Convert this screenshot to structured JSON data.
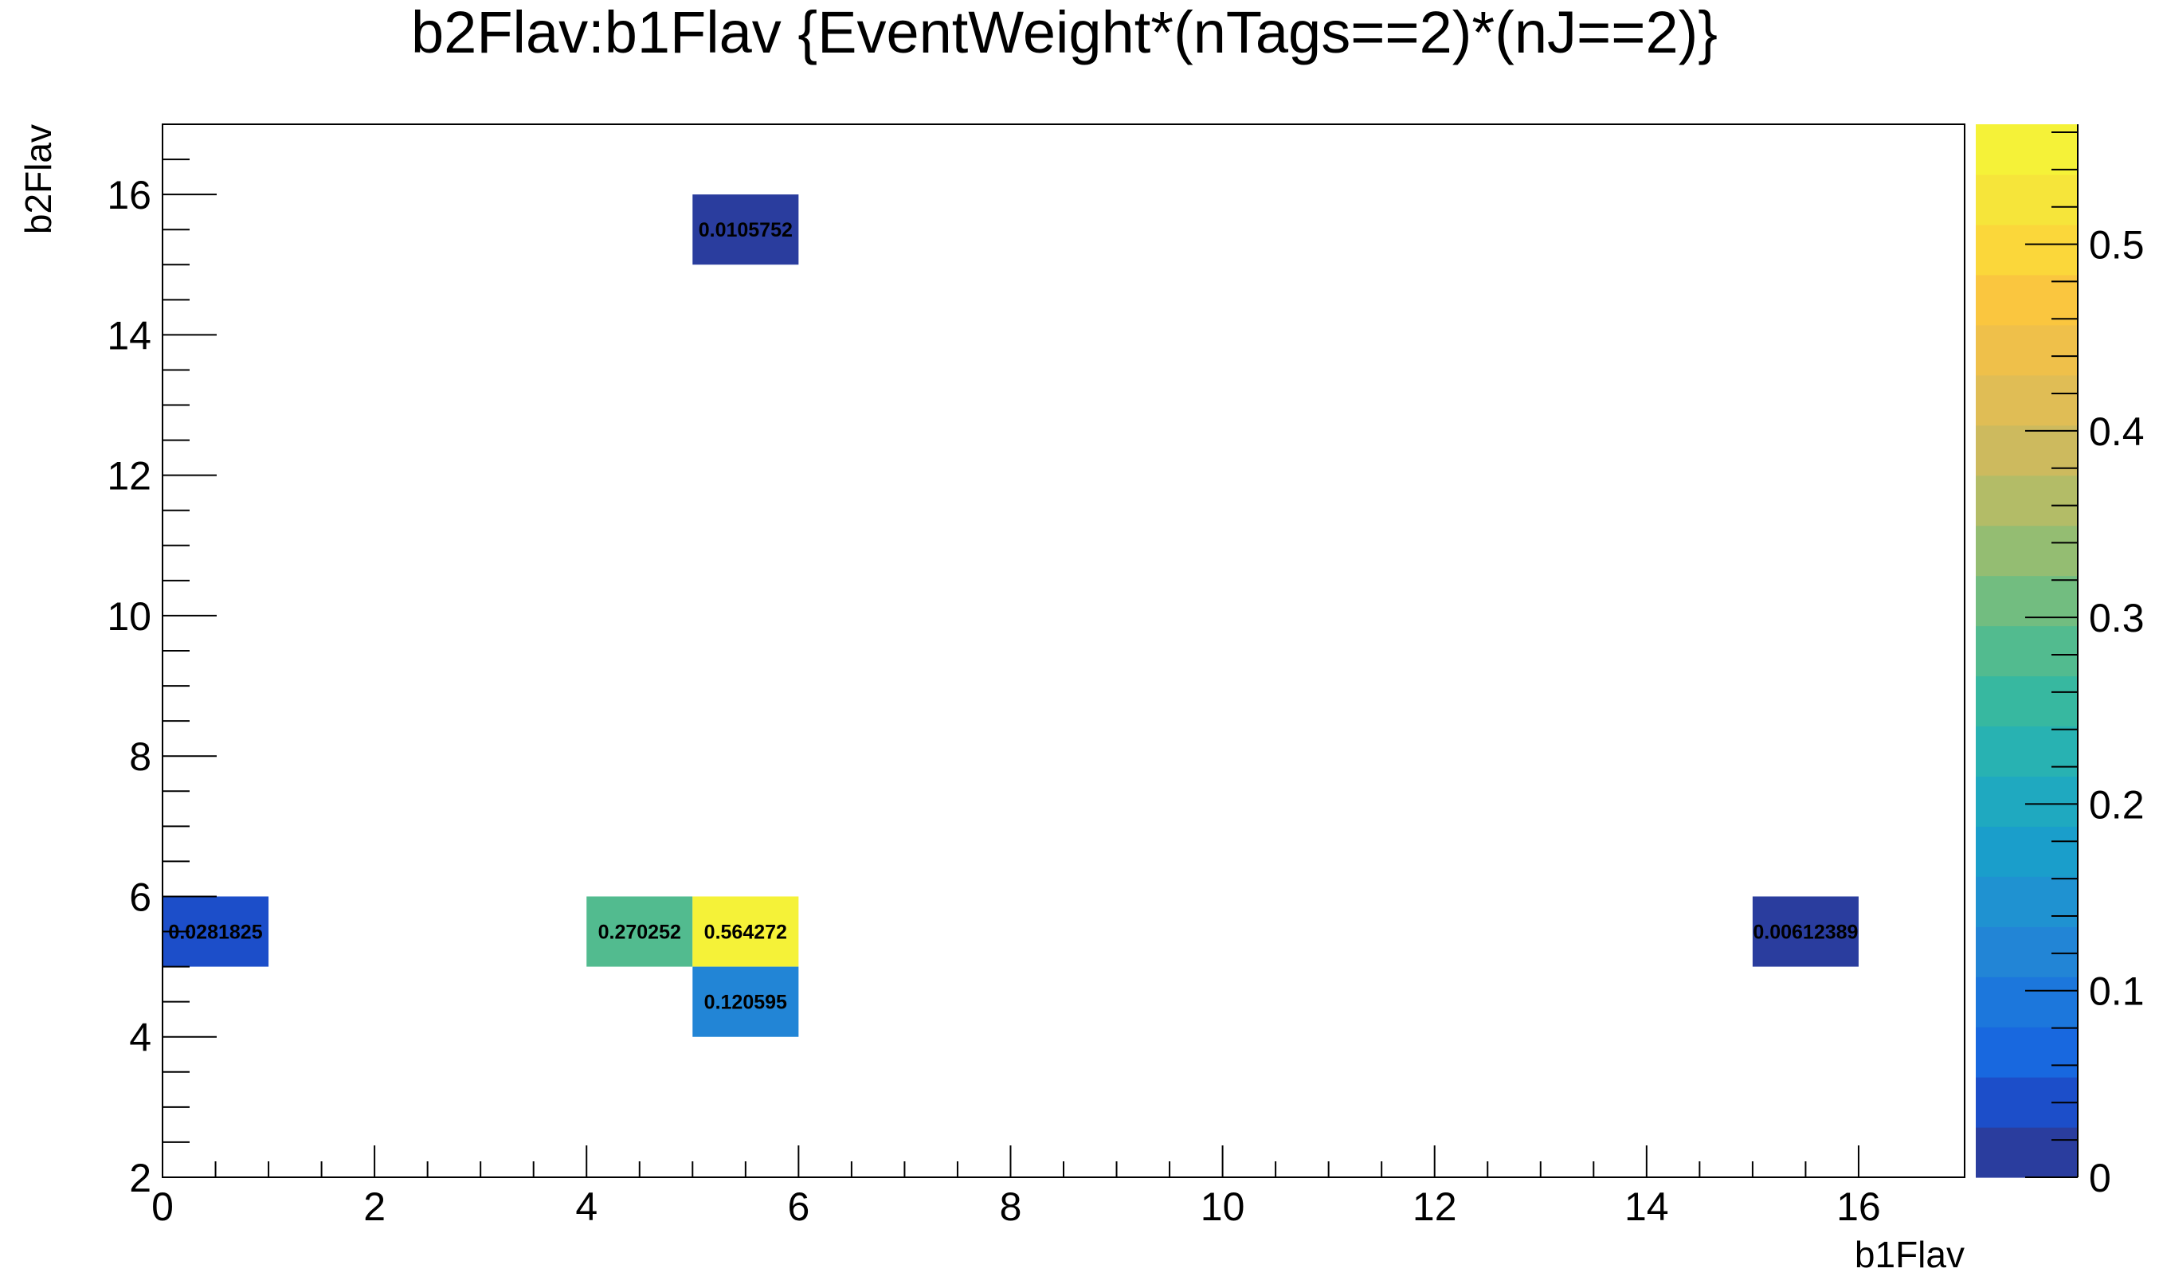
{
  "chart_data": {
    "type": "heatmap",
    "title": "b2Flav:b1Flav {EventWeight*(nTags==2)*(nJ==2)}",
    "xlabel": "b1Flav",
    "ylabel": "b2Flav",
    "xlim": [
      0,
      17
    ],
    "ylim": [
      2,
      17
    ],
    "xticks": [
      "0",
      "2",
      "4",
      "6",
      "8",
      "10",
      "12",
      "14",
      "16"
    ],
    "yticks": [
      "2",
      "4",
      "6",
      "8",
      "10",
      "12",
      "14",
      "16"
    ],
    "cells": [
      {
        "x": [
          0,
          1
        ],
        "y": [
          5,
          6
        ],
        "value": 0.0281825,
        "label": "0.0281825"
      },
      {
        "x": [
          4,
          5
        ],
        "y": [
          5,
          6
        ],
        "value": 0.270252,
        "label": "0.270252"
      },
      {
        "x": [
          5,
          6
        ],
        "y": [
          5,
          6
        ],
        "value": 0.564272,
        "label": "0.564272"
      },
      {
        "x": [
          5,
          6
        ],
        "y": [
          4,
          5
        ],
        "value": 0.120595,
        "label": "0.120595"
      },
      {
        "x": [
          5,
          6
        ],
        "y": [
          15,
          16
        ],
        "value": 0.0105752,
        "label": "0.0105752"
      },
      {
        "x": [
          15,
          16
        ],
        "y": [
          5,
          6
        ],
        "value": 0.00612389,
        "label": "0.00612389"
      }
    ],
    "colorbar": {
      "zlim": [
        0,
        0.564272
      ],
      "ticks": [
        "0",
        "0.1",
        "0.2",
        "0.3",
        "0.4",
        "0.5"
      ],
      "palette": [
        "#2a3d9e",
        "#1c4ec9",
        "#1868df",
        "#1c77dc",
        "#2285d6",
        "#1f92d1",
        "#1a9ecb",
        "#1fa9c0",
        "#28b2b2",
        "#37b8a0",
        "#52bb8f",
        "#72bd80",
        "#94bd72",
        "#b3bc67",
        "#cdba5e",
        "#e0bd55",
        "#efc04a",
        "#fac63f",
        "#fbd73a",
        "#f6e53a",
        "#f5f238"
      ]
    }
  }
}
